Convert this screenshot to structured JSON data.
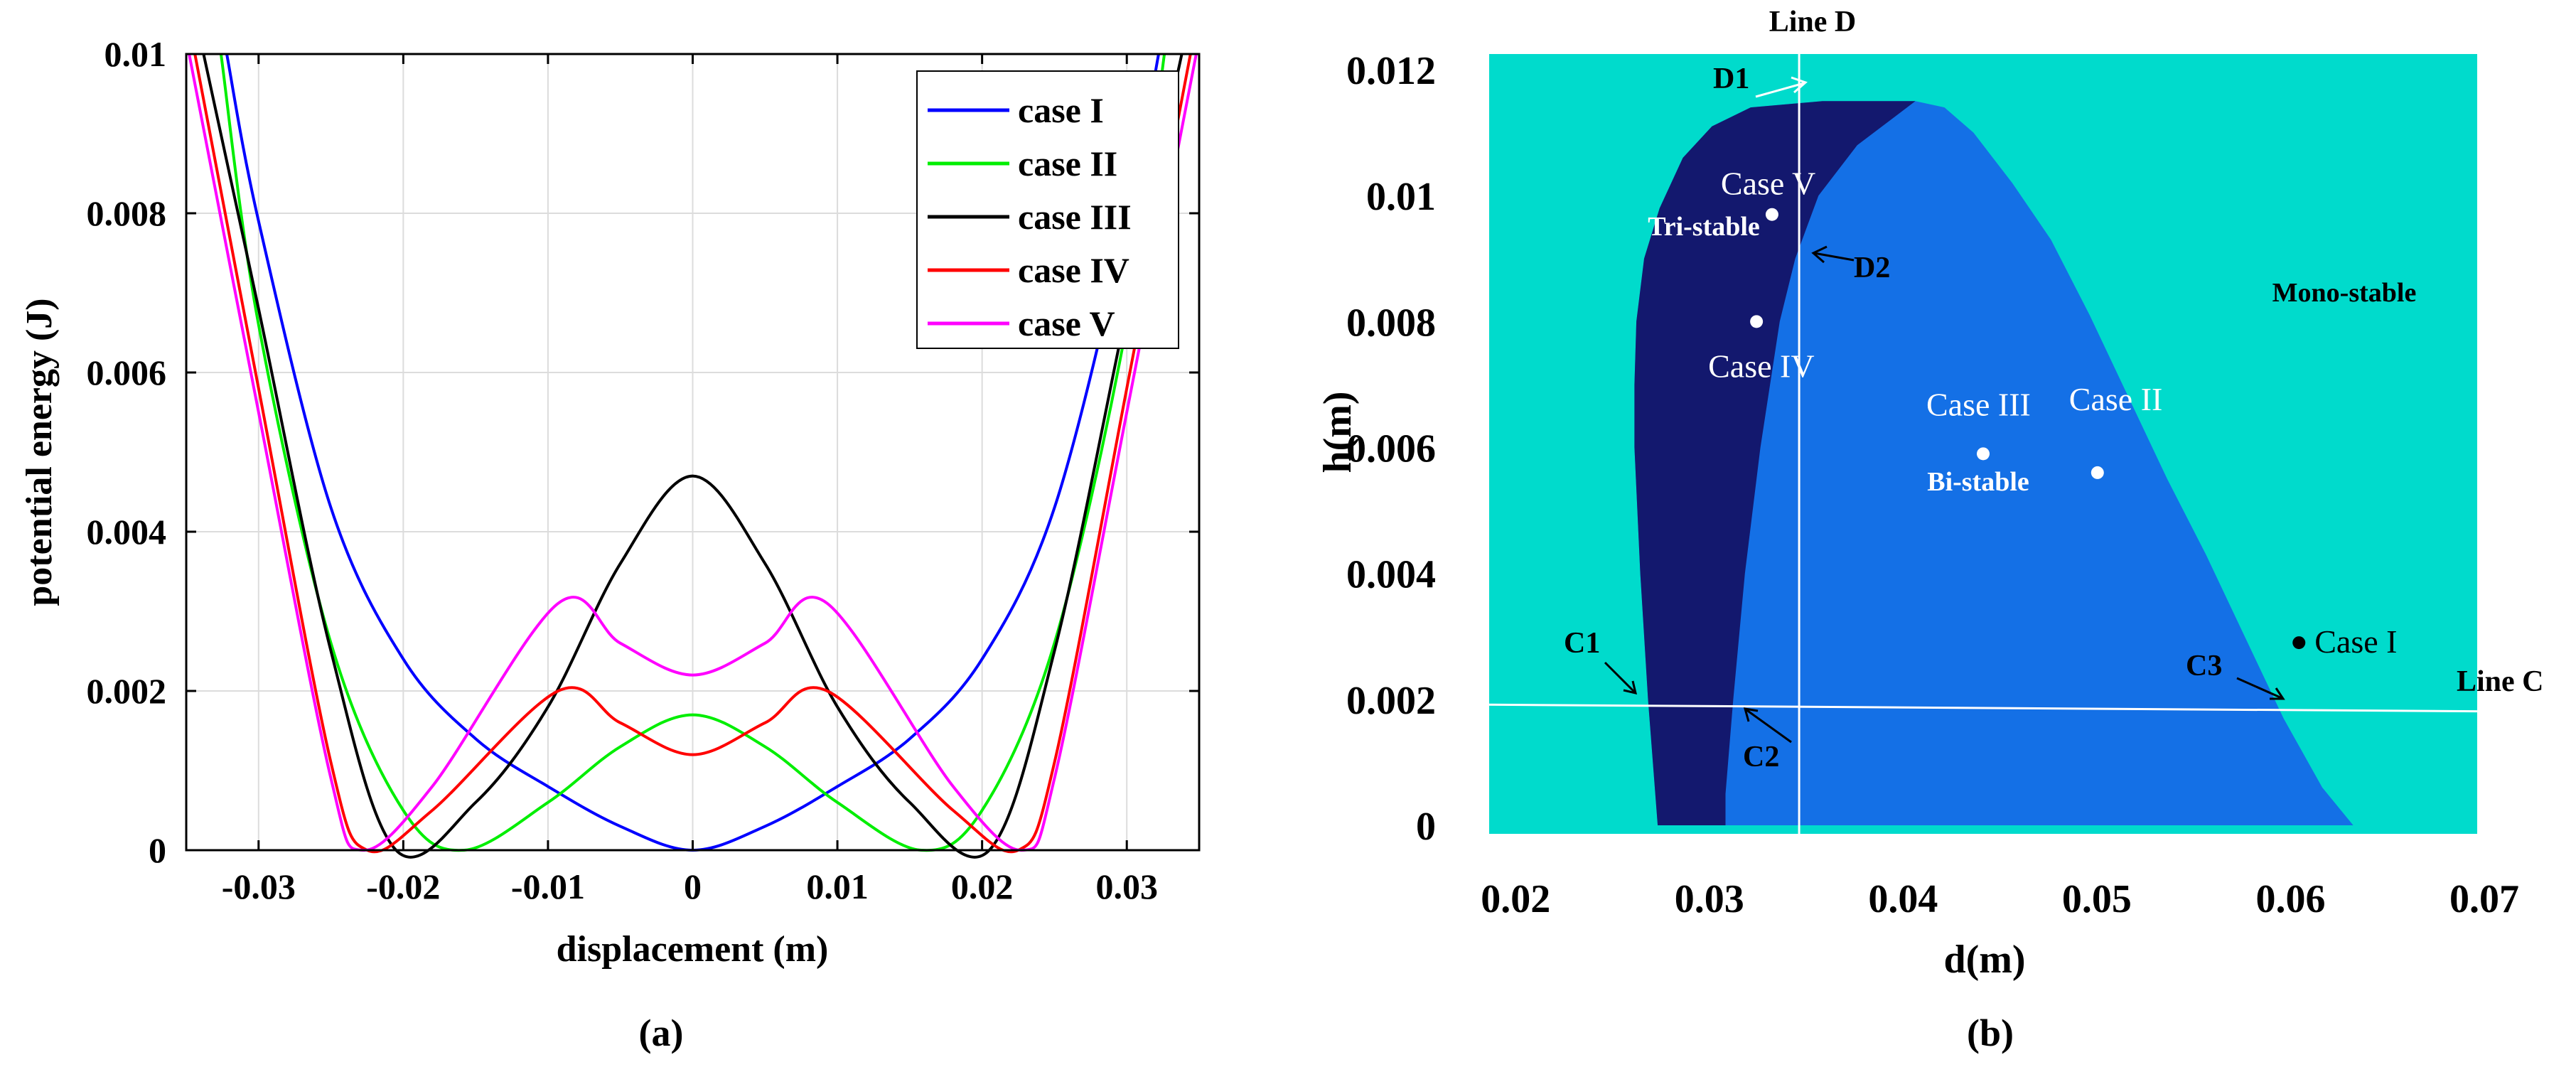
{
  "panel_a": {
    "caption": "(a)",
    "legend": [
      "case I",
      "case II",
      "case III",
      "case IV",
      "case V"
    ]
  },
  "panel_b": {
    "caption": "(b)",
    "regions": {
      "tri": "Tri-stable",
      "bi": "Bi-stable",
      "mono": "Mono-stable"
    },
    "cases": [
      {
        "label": "Case I",
        "color": "#000000"
      },
      {
        "label": "Case II",
        "color": "#ffffff"
      },
      {
        "label": "Case III",
        "color": "#ffffff"
      },
      {
        "label": "Case IV",
        "color": "#ffffff"
      },
      {
        "label": "Case V",
        "color": "#ffffff"
      }
    ],
    "line_d": "Line D",
    "line_c": "Line C",
    "markers": [
      "D1",
      "D2",
      "C1",
      "C2",
      "C3"
    ]
  },
  "chart_data": [
    {
      "type": "line",
      "title": "",
      "xlabel": "displacement (m)",
      "ylabel": "potential energy (J)",
      "xlim": [
        -0.035,
        0.035
      ],
      "ylim": [
        0,
        0.01
      ],
      "xticks": [
        -0.03,
        -0.02,
        -0.01,
        0,
        0.01,
        0.02,
        0.03
      ],
      "xtick_labels": [
        "-0.03",
        "-0.02",
        "-0.01",
        "0",
        "0.01",
        "0.02",
        "0.03"
      ],
      "yticks": [
        0,
        0.002,
        0.004,
        0.006,
        0.008,
        0.01
      ],
      "ytick_labels": [
        "0",
        "0.002",
        "0.004",
        "0.006",
        "0.008",
        "0.01"
      ],
      "grid": true,
      "legend_position": "top-right",
      "series": [
        {
          "name": "case I",
          "color": "#0000ff",
          "x": [
            -0.0322,
            -0.03,
            -0.025,
            -0.02,
            -0.015,
            -0.01,
            -0.005,
            0,
            0.005,
            0.01,
            0.015,
            0.02,
            0.025,
            0.03,
            0.0322
          ],
          "y": [
            0.01,
            0.0079,
            0.0043,
            0.0024,
            0.0014,
            0.0008,
            0.0003,
            0,
            0.0003,
            0.0008,
            0.0014,
            0.0024,
            0.0043,
            0.0079,
            0.01
          ]
        },
        {
          "name": "case II",
          "color": "#00ee00",
          "x": [
            -0.0326,
            -0.03,
            -0.025,
            -0.02,
            -0.0158,
            -0.01,
            -0.005,
            0,
            0.005,
            0.01,
            0.0158,
            0.02,
            0.025,
            0.03,
            0.0326
          ],
          "y": [
            0.01,
            0.0066,
            0.0026,
            0.0005,
            0,
            0.0006,
            0.0013,
            0.0017,
            0.0013,
            0.0006,
            0,
            0.0005,
            0.0026,
            0.0066,
            0.01
          ]
        },
        {
          "name": "case III",
          "color": "#000000",
          "x": [
            -0.0338,
            -0.03,
            -0.025,
            -0.0205,
            -0.015,
            -0.01,
            -0.005,
            0,
            0.005,
            0.01,
            0.015,
            0.0205,
            0.025,
            0.03,
            0.0338
          ],
          "y": [
            0.01,
            0.0068,
            0.0025,
            0,
            0.0006,
            0.0018,
            0.0036,
            0.0047,
            0.0036,
            0.0018,
            0.0006,
            0,
            0.0025,
            0.0068,
            0.01
          ]
        },
        {
          "name": "case IV",
          "color": "#ff0000",
          "x": [
            -0.0344,
            -0.03,
            -0.025,
            -0.0225,
            -0.018,
            -0.0093,
            -0.005,
            0,
            0.005,
            0.0093,
            0.018,
            0.0225,
            0.025,
            0.03,
            0.0344
          ],
          "y": [
            0.01,
            0.0058,
            0.0011,
            0,
            0.0005,
            0.002,
            0.0016,
            0.0012,
            0.0016,
            0.002,
            0.0005,
            0,
            0.0011,
            0.0058,
            0.01
          ]
        },
        {
          "name": "case V",
          "color": "#ff00ff",
          "x": [
            -0.0348,
            -0.03,
            -0.025,
            -0.0228,
            -0.018,
            -0.0093,
            -0.005,
            0,
            0.005,
            0.0093,
            0.018,
            0.0228,
            0.025,
            0.03,
            0.0348
          ],
          "y": [
            0.01,
            0.0055,
            0.0009,
            0,
            0.0008,
            0.0031,
            0.0026,
            0.0022,
            0.0026,
            0.0031,
            0.0008,
            0,
            0.0009,
            0.0055,
            0.01
          ]
        }
      ]
    },
    {
      "type": "area",
      "title": "",
      "xlabel": "d(m)",
      "ylabel": "h(m)",
      "xlim": [
        0.02,
        0.07
      ],
      "ylim": [
        0,
        0.012
      ],
      "xticks": [
        0.02,
        0.03,
        0.04,
        0.05,
        0.06,
        0.07
      ],
      "xtick_labels": [
        "0.02",
        "0.03",
        "0.04",
        "0.05",
        "0.06",
        "0.07"
      ],
      "yticks": [
        0,
        0.002,
        0.004,
        0.006,
        0.008,
        0.01,
        0.012
      ],
      "ytick_labels": [
        "0",
        "0.002",
        "0.004",
        "0.006",
        "0.008",
        "0.01",
        "0.012"
      ],
      "grid": false,
      "colors": {
        "mono": "#00dbcc",
        "bi": "#1470e6",
        "tri": "#13186e"
      },
      "regions": [
        {
          "name": "Tri-stable",
          "x": [
            0.0277,
            0.0272,
            0.0268,
            0.0265,
            0.0265,
            0.0266,
            0.027,
            0.0278,
            0.029,
            0.0305,
            0.0325,
            0.0362,
            0.041,
            0.038,
            0.036,
            0.0348,
            0.034,
            0.0335,
            0.033,
            0.0322,
            0.0316,
            0.0312,
            0.0312
          ],
          "y": [
            0,
            0.002,
            0.004,
            0.006,
            0.007,
            0.008,
            0.009,
            0.0098,
            0.0106,
            0.0111,
            0.0114,
            0.0115,
            0.0115,
            0.0108,
            0.01,
            0.009,
            0.008,
            0.007,
            0.006,
            0.004,
            0.002,
            0.0005,
            0
          ]
        },
        {
          "name": "Bi-stable",
          "x": [
            0.0312,
            0.0312,
            0.0316,
            0.0322,
            0.033,
            0.0335,
            0.034,
            0.0348,
            0.036,
            0.038,
            0.041,
            0.0425,
            0.044,
            0.046,
            0.048,
            0.05,
            0.052,
            0.054,
            0.056,
            0.058,
            0.06,
            0.062,
            0.0636
          ],
          "y": [
            0,
            0.0005,
            0.002,
            0.004,
            0.006,
            0.007,
            0.008,
            0.009,
            0.01,
            0.0108,
            0.0115,
            0.0114,
            0.011,
            0.0102,
            0.0093,
            0.0081,
            0.0068,
            0.0055,
            0.0043,
            0.003,
            0.0017,
            0.0006,
            0
          ]
        }
      ],
      "points": [
        {
          "label": "Case I",
          "x": 0.0608,
          "y": 0.0029
        },
        {
          "label": "Case II",
          "x": 0.0504,
          "y": 0.0056
        },
        {
          "label": "Case III",
          "x": 0.0445,
          "y": 0.0059
        },
        {
          "label": "Case IV",
          "x": 0.0328,
          "y": 0.008
        },
        {
          "label": "Case V",
          "x": 0.0336,
          "y": 0.0097
        }
      ],
      "lines": [
        {
          "name": "Line D",
          "x": [
            0.035,
            0.035
          ],
          "y": [
            0,
            0.0125
          ]
        },
        {
          "name": "Line C",
          "x": [
            0.019,
            0.07
          ],
          "y": [
            0.00192,
            0.0018
          ]
        }
      ]
    }
  ]
}
